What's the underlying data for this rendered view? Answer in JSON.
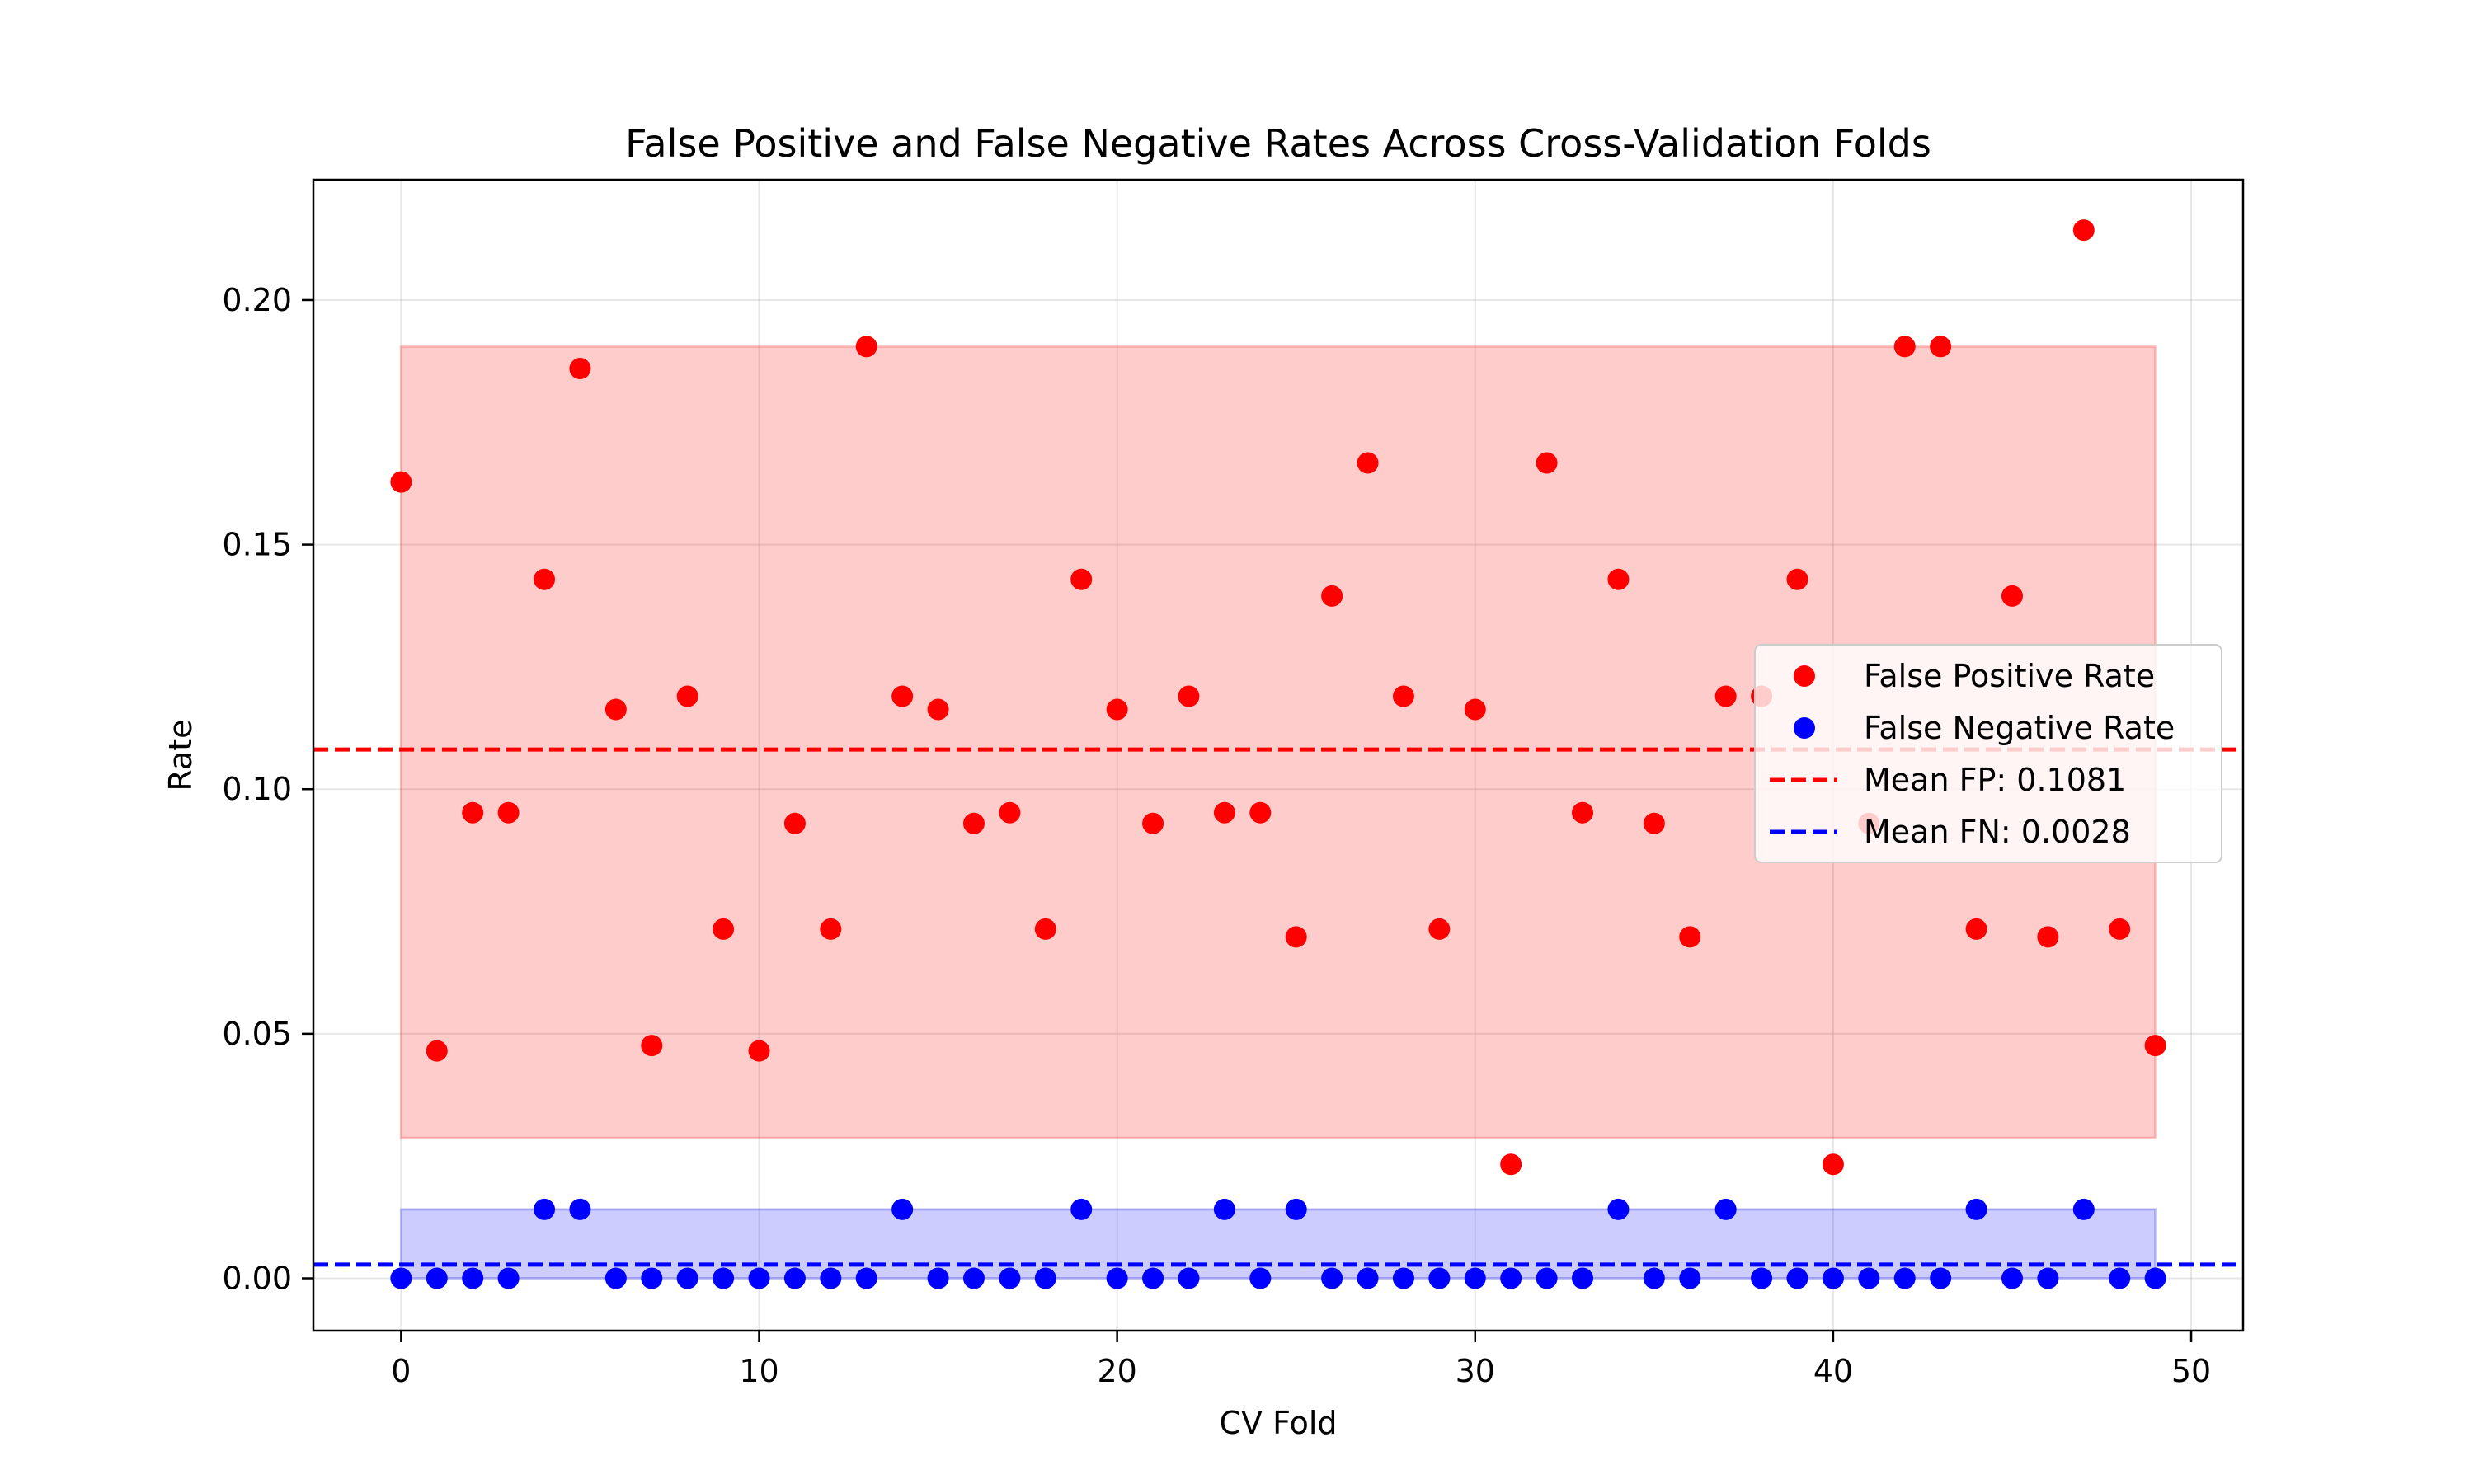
{
  "chart_data": {
    "type": "scatter",
    "title": "False Positive and False Negative Rates Across Cross-Validation Folds",
    "xlabel": "CV Fold",
    "ylabel": "Rate",
    "xlim": [
      -2.45,
      51.45
    ],
    "ylim": [
      -0.0107,
      0.2246
    ],
    "xticks": [
      0,
      10,
      20,
      30,
      40,
      50
    ],
    "xtick_labels": [
      "0",
      "10",
      "20",
      "30",
      "40",
      "50"
    ],
    "yticks": [
      0.0,
      0.05,
      0.1,
      0.15,
      0.2
    ],
    "ytick_labels": [
      "0.00",
      "0.05",
      "0.10",
      "0.15",
      "0.20"
    ],
    "grid": true,
    "legend_position": "center-right",
    "x": [
      0,
      1,
      2,
      3,
      4,
      5,
      6,
      7,
      8,
      9,
      10,
      11,
      12,
      13,
      14,
      15,
      16,
      17,
      18,
      19,
      20,
      21,
      22,
      23,
      24,
      25,
      26,
      27,
      28,
      29,
      30,
      31,
      32,
      33,
      34,
      35,
      36,
      37,
      38,
      39,
      40,
      41,
      42,
      43,
      44,
      45,
      46,
      47,
      48,
      49
    ],
    "series": [
      {
        "name": "False Positive Rate",
        "kind": "scatter",
        "color": "#ff0000",
        "values": [
          0.1628,
          0.0465,
          0.0952,
          0.0952,
          0.1429,
          0.186,
          0.1163,
          0.0476,
          0.119,
          0.0714,
          0.0465,
          0.093,
          0.0714,
          0.1905,
          0.119,
          0.1163,
          0.093,
          0.0952,
          0.0714,
          0.1429,
          0.1163,
          0.093,
          0.119,
          0.0952,
          0.0952,
          0.0698,
          0.1395,
          0.1667,
          0.119,
          0.0714,
          0.1163,
          0.0233,
          0.1667,
          0.0952,
          0.1429,
          0.093,
          0.0698,
          0.119,
          0.119,
          0.1429,
          0.0233,
          0.093,
          0.1905,
          0.1905,
          0.0714,
          0.1395,
          0.0698,
          0.2143,
          0.0714,
          0.0476
        ]
      },
      {
        "name": "False Negative Rate",
        "kind": "scatter",
        "color": "#0000ff",
        "values": [
          0,
          0,
          0,
          0,
          0.0141,
          0.0141,
          0,
          0,
          0,
          0,
          0,
          0,
          0,
          0,
          0.0141,
          0,
          0,
          0,
          0,
          0.0141,
          0,
          0,
          0,
          0.0141,
          0,
          0.0141,
          0,
          0,
          0,
          0,
          0,
          0,
          0,
          0,
          0.0141,
          0,
          0,
          0.0141,
          0,
          0,
          0,
          0,
          0,
          0,
          0.0141,
          0,
          0,
          0.0141,
          0,
          0
        ]
      }
    ],
    "mean_lines": [
      {
        "name": "Mean FP: 0.1081",
        "value": 0.1081,
        "color": "#ff0000",
        "style": "dashed"
      },
      {
        "name": "Mean FN: 0.0028",
        "value": 0.0028,
        "color": "#0000ff",
        "style": "dashed"
      }
    ],
    "bands": [
      {
        "series": "False Positive Rate",
        "x_range": [
          0,
          49
        ],
        "y_range": [
          0.0287,
          0.1905
        ],
        "color": "#ff0000",
        "alpha": 0.2
      },
      {
        "series": "False Negative Rate",
        "x_range": [
          0,
          49
        ],
        "y_range": [
          0.0,
          0.0141
        ],
        "color": "#0000ff",
        "alpha": 0.2
      }
    ]
  }
}
